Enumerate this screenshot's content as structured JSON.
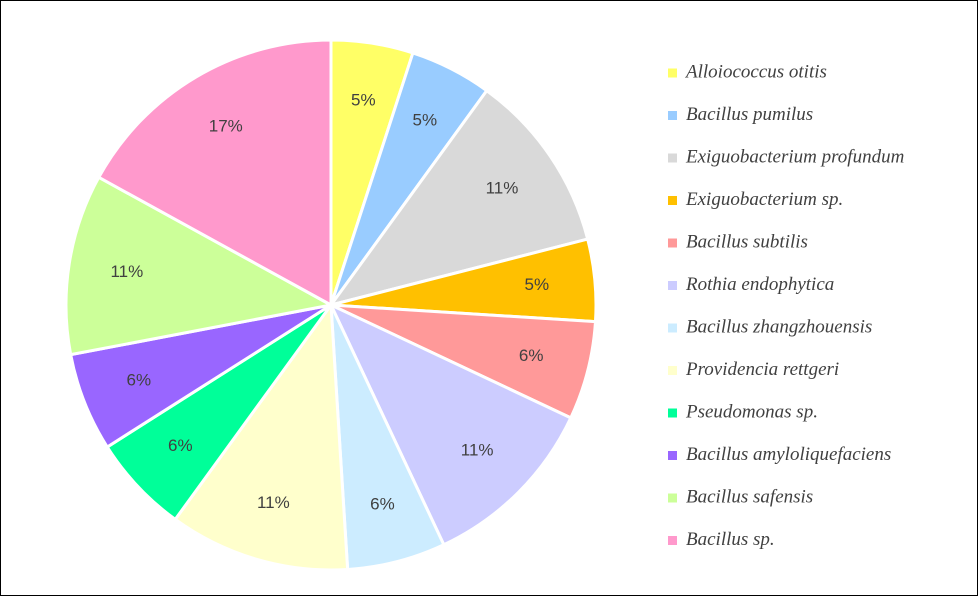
{
  "chart_data": {
    "type": "pie",
    "categories": [
      "Alloiococcus otitis",
      "Bacillus pumilus",
      "Exiguobacterium profundum",
      "Exiguobacterium sp.",
      "Bacillus subtilis",
      "Rothia endophytica",
      "Bacillus zhangzhouensis",
      "Providencia rettgeri",
      "Pseudomonas sp.",
      "Bacillus amyloliquefaciens",
      "Bacillus safensis",
      "Bacillus sp."
    ],
    "values": [
      5,
      5,
      11,
      5,
      6,
      11,
      6,
      11,
      6,
      6,
      11,
      17
    ],
    "value_labels": [
      "5%",
      "5%",
      "11%",
      "5%",
      "6%",
      "11%",
      "6%",
      "11%",
      "6%",
      "6%",
      "11%",
      "17%"
    ],
    "colors": [
      "#FFFF66",
      "#99CCFF",
      "#D9D9D9",
      "#FFC000",
      "#FF9999",
      "#CCCCFF",
      "#CCECFF",
      "#FFFFCC",
      "#00FF99",
      "#9966FF",
      "#CCFF99",
      "#FF99CC"
    ],
    "legend": "right"
  }
}
